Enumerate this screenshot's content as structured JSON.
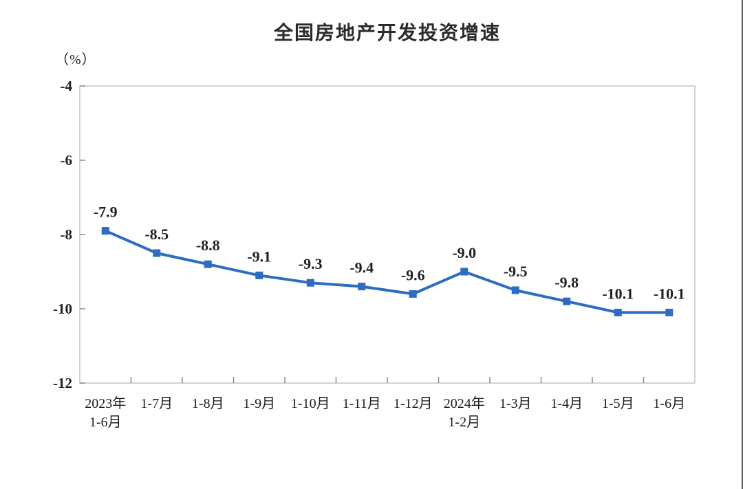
{
  "page": {
    "background": "#ffffff"
  },
  "header": {
    "title": "全国房地产开发投资增速",
    "unit_label": "（%）"
  },
  "chart_data": {
    "type": "line",
    "title": "全国房地产开发投资增速",
    "ylabel": "（%）",
    "xlabel": "",
    "categories": [
      [
        "2023年",
        "1-6月"
      ],
      [
        "1-7月"
      ],
      [
        "1-8月"
      ],
      [
        "1-9月"
      ],
      [
        "1-10月"
      ],
      [
        "1-11月"
      ],
      [
        "1-12月"
      ],
      [
        "2024年",
        "1-2月"
      ],
      [
        "1-3月"
      ],
      [
        "1-4月"
      ],
      [
        "1-5月"
      ],
      [
        "1-6月"
      ]
    ],
    "series": [
      {
        "name": "全国房地产开发投资增速",
        "values": [
          -7.9,
          -8.5,
          -8.8,
          -9.1,
          -9.3,
          -9.4,
          -9.6,
          -9.0,
          -9.5,
          -9.8,
          -10.1,
          -10.1
        ],
        "labels": [
          "-7.9",
          "-8.5",
          "-8.8",
          "-9.1",
          "-9.3",
          "-9.4",
          "-9.6",
          "-9.0",
          "-9.5",
          "-9.8",
          "-10.1",
          "-10.1"
        ]
      }
    ],
    "y_ticks": [
      -4,
      -6,
      -8,
      -10,
      -12
    ],
    "y_tick_labels": [
      "-4",
      "-6",
      "-8",
      "-10",
      "-12"
    ],
    "ylim": [
      -12,
      -4
    ],
    "grid": false,
    "legend_position": "none",
    "marker_shape": "square",
    "colors": {
      "line": "#2d6cc0",
      "marker": "#2d6cc0",
      "data_label": "#1f1f1f",
      "tick_label": "#1f1f1f",
      "axis_border": "#c3c3c3",
      "tick_mark": "#8a8a8a",
      "title": "#2b2b2b"
    }
  }
}
